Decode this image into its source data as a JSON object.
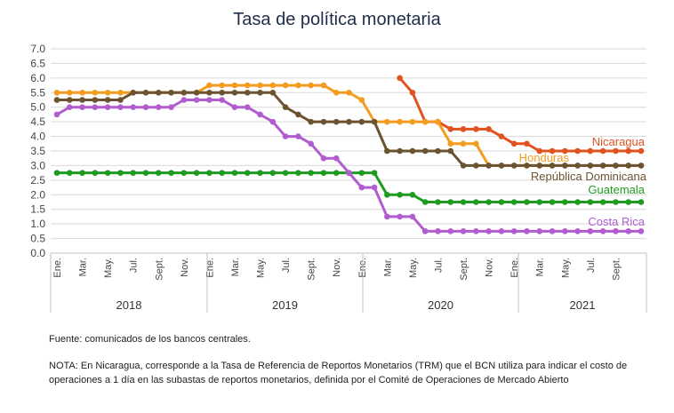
{
  "chart_data": {
    "type": "line",
    "title": "Tasa de política monetaria",
    "ylim": [
      0,
      7
    ],
    "y_ticks": [
      "0.0",
      "0.5",
      "1.0",
      "1.5",
      "2.0",
      "2.5",
      "3.0",
      "3.5",
      "4.0",
      "4.5",
      "5.0",
      "5.5",
      "6.0",
      "6.5",
      "7.0"
    ],
    "month_labels": [
      "Ene.",
      "Mar.",
      "May.",
      "Jul.",
      "Sept.",
      "Nov.",
      "Ene.",
      "Mar.",
      "May.",
      "Jul.",
      "Sept.",
      "Nov.",
      "Ene.",
      "Mar.",
      "May.",
      "Jul.",
      "Sept.",
      "Nov.",
      "Ene.",
      "Mar.",
      "May.",
      "Jul.",
      "Sept."
    ],
    "years": [
      "2018",
      "2019",
      "2020",
      "2021"
    ],
    "grid": true,
    "series": [
      {
        "name": "Nicaragua",
        "color": "#e0521f",
        "values": [
          null,
          null,
          null,
          null,
          null,
          null,
          null,
          null,
          null,
          null,
          null,
          null,
          null,
          null,
          null,
          null,
          null,
          null,
          null,
          null,
          null,
          null,
          null,
          null,
          null,
          null,
          null,
          6.0,
          5.5,
          4.5,
          4.5,
          4.25,
          4.25,
          4.25,
          4.25,
          4.0,
          3.75,
          3.75,
          3.5,
          3.5,
          3.5,
          3.5,
          3.5,
          3.5,
          3.5,
          3.5,
          3.5
        ]
      },
      {
        "name": "Honduras",
        "color": "#f39c1f",
        "values": [
          5.5,
          5.5,
          5.5,
          5.5,
          5.5,
          5.5,
          5.5,
          5.5,
          5.5,
          5.5,
          5.5,
          5.5,
          5.75,
          5.75,
          5.75,
          5.75,
          5.75,
          5.75,
          5.75,
          5.75,
          5.75,
          5.75,
          5.5,
          5.5,
          5.25,
          4.5,
          4.5,
          4.5,
          4.5,
          4.5,
          4.5,
          3.75,
          3.75,
          3.75,
          3.0,
          3.0,
          3.0,
          3.0,
          3.0,
          3.0,
          3.0,
          3.0,
          3.0,
          3.0,
          3.0,
          3.0,
          3.0
        ]
      },
      {
        "name": "República Dominicana",
        "color": "#6b5332",
        "values": [
          5.25,
          5.25,
          5.25,
          5.25,
          5.25,
          5.25,
          5.5,
          5.5,
          5.5,
          5.5,
          5.5,
          5.5,
          5.5,
          5.5,
          5.5,
          5.5,
          5.5,
          5.5,
          5.0,
          4.75,
          4.5,
          4.5,
          4.5,
          4.5,
          4.5,
          4.5,
          3.5,
          3.5,
          3.5,
          3.5,
          3.5,
          3.5,
          3.0,
          3.0,
          3.0,
          3.0,
          3.0,
          3.0,
          3.0,
          3.0,
          3.0,
          3.0,
          3.0,
          3.0,
          3.0,
          3.0,
          3.0
        ]
      },
      {
        "name": "Guatemala",
        "color": "#1f9c1f",
        "values": [
          2.75,
          2.75,
          2.75,
          2.75,
          2.75,
          2.75,
          2.75,
          2.75,
          2.75,
          2.75,
          2.75,
          2.75,
          2.75,
          2.75,
          2.75,
          2.75,
          2.75,
          2.75,
          2.75,
          2.75,
          2.75,
          2.75,
          2.75,
          2.75,
          2.75,
          2.75,
          2.0,
          2.0,
          2.0,
          1.75,
          1.75,
          1.75,
          1.75,
          1.75,
          1.75,
          1.75,
          1.75,
          1.75,
          1.75,
          1.75,
          1.75,
          1.75,
          1.75,
          1.75,
          1.75,
          1.75,
          1.75
        ]
      },
      {
        "name": "Costa Rica",
        "color": "#b15ccf",
        "values": [
          4.75,
          5.0,
          5.0,
          5.0,
          5.0,
          5.0,
          5.0,
          5.0,
          5.0,
          5.0,
          5.25,
          5.25,
          5.25,
          5.25,
          5.0,
          5.0,
          4.75,
          4.5,
          4.0,
          4.0,
          3.75,
          3.25,
          3.25,
          2.75,
          2.25,
          2.25,
          1.25,
          1.25,
          1.25,
          0.75,
          0.75,
          0.75,
          0.75,
          0.75,
          0.75,
          0.75,
          0.75,
          0.75,
          0.75,
          0.75,
          0.75,
          0.75,
          0.75,
          0.75,
          0.75,
          0.75,
          0.75
        ]
      }
    ]
  },
  "footer": {
    "source": "Fuente: comunicados de los bancos centrales.",
    "note": "NOTA: En Nicaragua, corresponde a la Tasa de Referencia de Reportos Monetarios (TRM) que el BCN utiliza para indicar el costo de operaciones a 1 día en las subastas de reportos monetarios, definida por el Comité de Operaciones de Mercado Abierto"
  }
}
